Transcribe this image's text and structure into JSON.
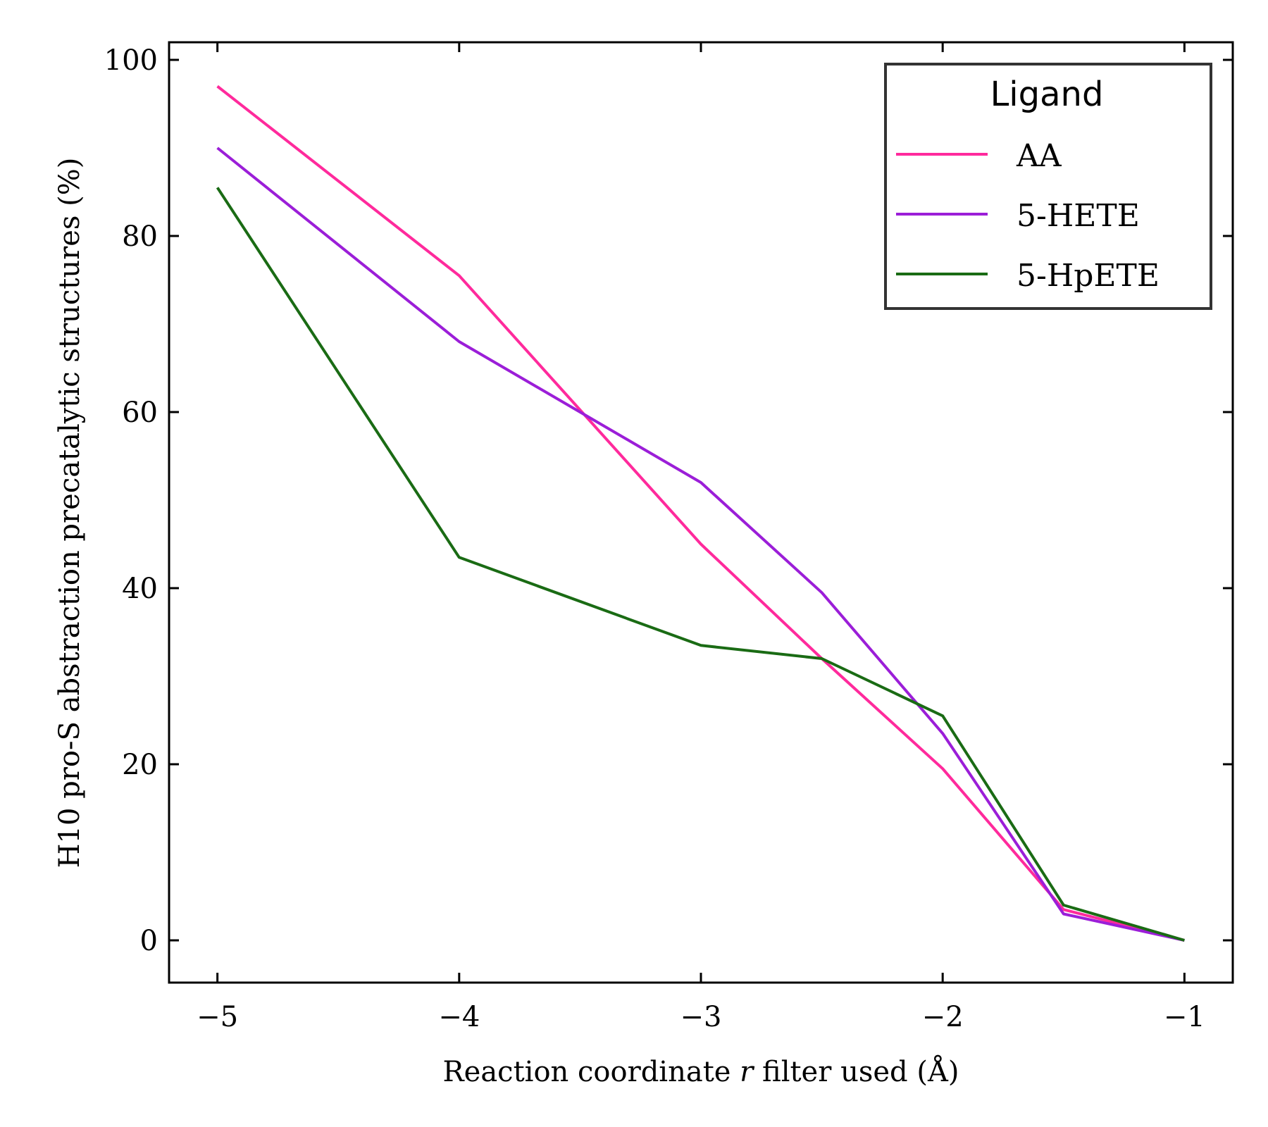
{
  "chart_data": {
    "type": "line",
    "xlabel": "Reaction coordinate r filter used (Å)",
    "xlabel_parts": {
      "before": "Reaction coordinate ",
      "italic": "r",
      "after": " filter used (Å)"
    },
    "ylabel": "H10 pro-S abstraction precatalytic structures (%)",
    "xlim": [
      -5.2,
      -0.8
    ],
    "ylim": [
      -4.8,
      102
    ],
    "xticks": [
      -5,
      -4,
      -3,
      -2,
      -1
    ],
    "xtick_labels": [
      "−5",
      "−4",
      "−3",
      "−2",
      "−1"
    ],
    "yticks": [
      0,
      20,
      40,
      60,
      80,
      100
    ],
    "ytick_labels": [
      "0",
      "20",
      "40",
      "60",
      "80",
      "100"
    ],
    "grid": false,
    "legend": {
      "title": "Ligand",
      "placement": "top-right"
    },
    "series": [
      {
        "name": "AA",
        "color": "#ff2a9c",
        "x": [
          -5,
          -4,
          -3,
          -2.5,
          -2,
          -1.5,
          -1
        ],
        "y": [
          97,
          75.5,
          45,
          32,
          19.5,
          3.5,
          0
        ]
      },
      {
        "name": "5-HETE",
        "color": "#9b1ed8",
        "x": [
          -5,
          -4,
          -3,
          -2.5,
          -2,
          -1.5,
          -1
        ],
        "y": [
          90,
          68,
          52,
          39.5,
          23.5,
          3,
          0
        ]
      },
      {
        "name": "5-HpETE",
        "color": "#1a6b14",
        "x": [
          -5,
          -4,
          -3,
          -2.5,
          -2,
          -1.5,
          -1
        ],
        "y": [
          85.5,
          43.5,
          33.5,
          32,
          25.5,
          4,
          0
        ]
      }
    ]
  }
}
